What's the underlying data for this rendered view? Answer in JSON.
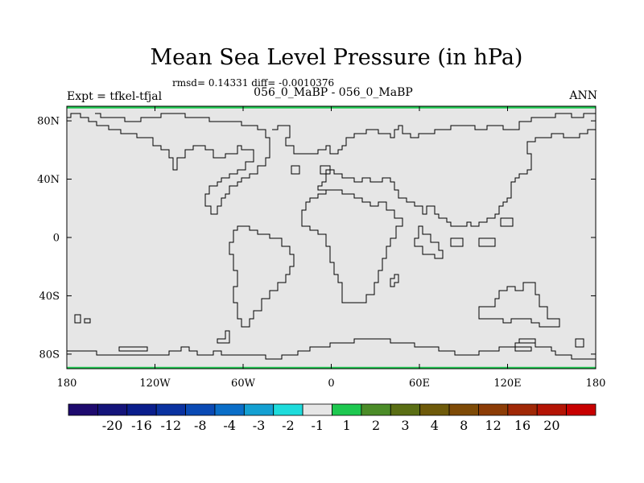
{
  "chart_data": {
    "type": "heatmap",
    "title": "Mean Sea Level Pressure (in hPa)",
    "stats_text": "rmsd= 0.14331 diff= -0.0010376",
    "subtitle": "056_0_MaBP - 056_0_MaBP",
    "left_label": "Expt = tfkel-tfjal",
    "right_label": "ANN",
    "xlim": [
      -180,
      180
    ],
    "ylim": [
      -90,
      90
    ],
    "x_ticks": [
      {
        "value": -180,
        "label": "180"
      },
      {
        "value": -120,
        "label": "120W"
      },
      {
        "value": -60,
        "label": "60W"
      },
      {
        "value": 0,
        "label": "0"
      },
      {
        "value": 60,
        "label": "60E"
      },
      {
        "value": 120,
        "label": "120E"
      },
      {
        "value": 180,
        "label": "180"
      }
    ],
    "y_ticks": [
      {
        "value": 80,
        "label": "80N"
      },
      {
        "value": 40,
        "label": "40N"
      },
      {
        "value": 0,
        "label": "0"
      },
      {
        "value": -40,
        "label": "40S"
      },
      {
        "value": -80,
        "label": "80S"
      }
    ],
    "field_value_range": [
      -1,
      1
    ],
    "field_color": "#e6e6e6",
    "colorbar": {
      "colors": [
        "#1e0a6e",
        "#14147a",
        "#0a1e8c",
        "#0a32a0",
        "#0a4ab4",
        "#0a6ec8",
        "#14a0d2",
        "#1edcdc",
        "#e6e6e6",
        "#1ec850",
        "#4b8c28",
        "#5a6e14",
        "#6e5a0a",
        "#7e4a06",
        "#8c3c06",
        "#a02806",
        "#b41404",
        "#c80000"
      ],
      "labels": [
        "-20",
        "-16",
        "-12",
        "-8",
        "-4",
        "-3",
        "-2",
        "-1",
        "1",
        "2",
        "3",
        "4",
        "8",
        "12",
        "16",
        "20"
      ]
    }
  }
}
